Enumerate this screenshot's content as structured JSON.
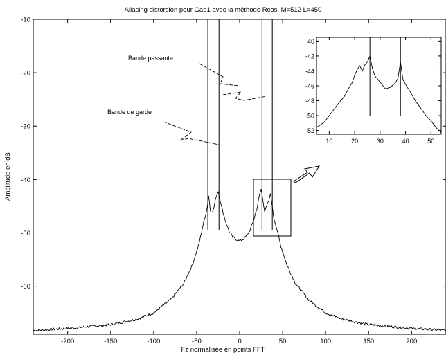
{
  "chart_data": {
    "type": "line",
    "title": "Aliasing distorsion pour Gab1 avec la méthode Rcos, M=512 L=450",
    "xlabel": "Fz normalisée en points FFT",
    "ylabel": "Amplitude en dB",
    "xlim": [
      -240,
      240
    ],
    "ylim": [
      -69,
      -10
    ],
    "xticks": [
      -200,
      -150,
      -100,
      -50,
      0,
      50,
      100,
      150,
      200
    ],
    "yticks": [
      -10,
      -20,
      -30,
      -40,
      -50,
      -60
    ],
    "grid": false,
    "series": [
      {
        "x": [
          -240,
          -200,
          -150,
          -120,
          -100,
          -80,
          -65,
          -55,
          -48,
          -42,
          -38,
          -36,
          -34,
          -31,
          -29,
          -27,
          -25,
          -23,
          -20,
          -16,
          -12,
          -8,
          -4,
          0,
          4,
          8,
          12,
          16,
          20,
          23,
          25,
          27,
          29,
          31,
          34,
          36,
          38,
          40,
          42,
          48,
          55,
          65,
          80,
          100,
          120,
          150,
          200,
          240
        ],
        "y": [
          -68.3,
          -67.9,
          -67.2,
          -66.2,
          -65.0,
          -62.5,
          -59.5,
          -56.0,
          -52.5,
          -48.2,
          -45.5,
          -43.0,
          -45.8,
          -46.0,
          -44.5,
          -43.0,
          -42.2,
          -43.6,
          -45.8,
          -48.0,
          -49.8,
          -50.8,
          -51.2,
          -51.5,
          -51.2,
          -50.6,
          -49.5,
          -47.8,
          -45.5,
          -43.0,
          -41.8,
          -43.8,
          -45.8,
          -45.2,
          -44.0,
          -42.6,
          -45.2,
          -47.4,
          -48.4,
          -52.5,
          -56.0,
          -59.5,
          -62.5,
          -65.0,
          -66.2,
          -67.2,
          -67.9,
          -68.3
        ]
      }
    ],
    "vlines": [
      -37,
      -24,
      26,
      38
    ],
    "annotations": [
      "Bande passante",
      "Bande de garde"
    ],
    "inset": {
      "xlim": [
        5,
        54
      ],
      "ylim": [
        -52.5,
        -39.5
      ],
      "xticks": [
        10,
        20,
        30,
        40,
        50
      ],
      "yticks": [
        -40,
        -42,
        -44,
        -46,
        -48,
        -50,
        -52
      ],
      "vlines": [
        26,
        38
      ],
      "x": [
        5,
        8,
        10,
        12,
        14,
        16,
        18,
        19,
        20,
        21,
        22,
        23,
        24,
        25,
        26,
        27,
        28,
        30,
        32,
        34,
        36,
        37,
        38,
        39,
        40,
        42,
        44,
        46,
        48,
        50,
        52,
        54
      ],
      "y": [
        -51.6,
        -50.9,
        -50.0,
        -49.1,
        -48.2,
        -47.4,
        -46.1,
        -45.6,
        -44.6,
        -43.8,
        -43.3,
        -44.0,
        -43.2,
        -42.8,
        -42.0,
        -43.7,
        -44.7,
        -45.5,
        -46.4,
        -46.2,
        -45.6,
        -45.0,
        -42.8,
        -45.2,
        -45.8,
        -46.9,
        -48.1,
        -49.0,
        -50.0,
        -50.7,
        -51.6,
        -52.3
      ]
    }
  }
}
